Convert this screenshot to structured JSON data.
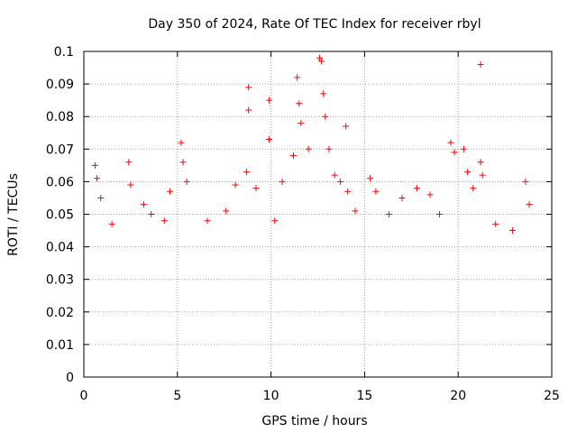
{
  "chart_data": {
    "type": "scatter",
    "title": "Day 350 of 2024, Rate Of TEC Index for receiver rbyl",
    "xlabel": "GPS time / hours",
    "ylabel": "ROTI / TECUs",
    "xlim": [
      0,
      25
    ],
    "ylim": [
      0,
      0.1
    ],
    "xticks": [
      0,
      5,
      10,
      15,
      20,
      25
    ],
    "xtick_labels": [
      "0",
      "5",
      "10",
      "15",
      "20",
      "25"
    ],
    "yticks": [
      0,
      0.01,
      0.02,
      0.03,
      0.04,
      0.05,
      0.06,
      0.07,
      0.08,
      0.09,
      0.1
    ],
    "ytick_labels": [
      "0",
      "0.01",
      "0.02",
      "0.03",
      "0.04",
      "0.05",
      "0.06",
      "0.07",
      "0.08",
      "0.09",
      "0.1"
    ],
    "grid": true,
    "marker": "+",
    "series": [
      {
        "name": "ROTI",
        "color": "#ff0000",
        "points": [
          [
            0.6,
            0.065
          ],
          [
            0.7,
            0.061
          ],
          [
            0.9,
            0.055
          ],
          [
            1.5,
            0.047
          ],
          [
            2.4,
            0.066
          ],
          [
            2.5,
            0.059
          ],
          [
            3.2,
            0.053
          ],
          [
            3.6,
            0.05
          ],
          [
            4.3,
            0.048
          ],
          [
            4.6,
            0.057
          ],
          [
            5.2,
            0.072
          ],
          [
            5.3,
            0.066
          ],
          [
            5.5,
            0.06
          ],
          [
            6.6,
            0.048
          ],
          [
            7.6,
            0.051
          ],
          [
            8.1,
            0.059
          ],
          [
            8.7,
            0.063
          ],
          [
            8.8,
            0.082
          ],
          [
            8.8,
            0.089
          ],
          [
            9.2,
            0.058
          ],
          [
            9.9,
            0.085
          ],
          [
            9.9,
            0.073
          ],
          [
            10.2,
            0.048
          ],
          [
            10.6,
            0.06
          ],
          [
            11.2,
            0.068
          ],
          [
            11.4,
            0.092
          ],
          [
            11.5,
            0.084
          ],
          [
            11.6,
            0.078
          ],
          [
            12.0,
            0.07
          ],
          [
            12.6,
            0.098
          ],
          [
            12.7,
            0.097
          ],
          [
            12.8,
            0.087
          ],
          [
            12.9,
            0.08
          ],
          [
            13.1,
            0.07
          ],
          [
            13.4,
            0.062
          ],
          [
            13.7,
            0.06
          ],
          [
            14.0,
            0.077
          ],
          [
            14.1,
            0.057
          ],
          [
            14.5,
            0.051
          ],
          [
            15.3,
            0.061
          ],
          [
            15.6,
            0.057
          ],
          [
            16.3,
            0.05
          ],
          [
            17.0,
            0.055
          ],
          [
            17.8,
            0.058
          ],
          [
            18.5,
            0.056
          ],
          [
            19.0,
            0.05
          ],
          [
            19.6,
            0.072
          ],
          [
            19.8,
            0.069
          ],
          [
            20.3,
            0.07
          ],
          [
            20.5,
            0.063
          ],
          [
            20.8,
            0.058
          ],
          [
            21.2,
            0.096
          ],
          [
            21.2,
            0.066
          ],
          [
            21.3,
            0.062
          ],
          [
            22.0,
            0.047
          ],
          [
            22.9,
            0.045
          ],
          [
            23.6,
            0.06
          ],
          [
            23.8,
            0.053
          ]
        ]
      }
    ]
  }
}
